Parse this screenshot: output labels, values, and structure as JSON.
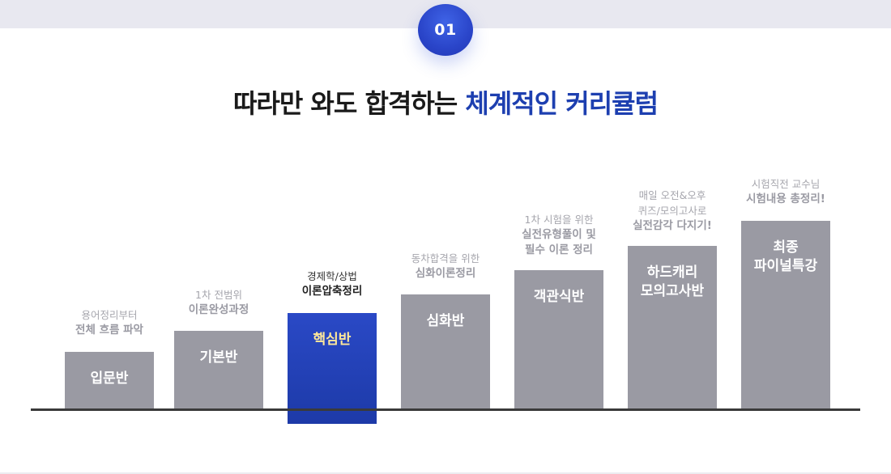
{
  "step_number": "01",
  "headline": {
    "part1": "따라만 와도 합격하는 ",
    "part2": "체계적인 커리큘럼"
  },
  "courses": [
    {
      "label": "입문반",
      "caption_sub": "용어정리부터",
      "caption_main": "전체 흐름 파악"
    },
    {
      "label": "기본반",
      "caption_sub": "1차 전범위",
      "caption_main": "이론완성과정"
    },
    {
      "label": "핵심반",
      "caption_sub": "경제학/상법",
      "caption_main": "이론압축정리"
    },
    {
      "label": "심화반",
      "caption_sub": "동차합격을 위한",
      "caption_main": "심화이론정리"
    },
    {
      "label": "객관식반",
      "caption_sub": "1차 시험을 위한",
      "caption_main": "실전유형풀이 및\n필수 이론 정리"
    },
    {
      "label": "하드캐리\n모의고사반",
      "caption_sub": "매일 오전&오후\n퀴즈/모의고사로",
      "caption_main": "실전감각 다지기!"
    },
    {
      "label": "최종\n파이널특강",
      "caption_sub": "시험직전 교수님",
      "caption_main": "시험내용 총정리!"
    }
  ],
  "colors": {
    "accent_blue": "#1d3fb0",
    "bar_gray": "#9a9aa3",
    "highlight_text": "#ffe89a",
    "badge_blue": "#2a45c9"
  }
}
